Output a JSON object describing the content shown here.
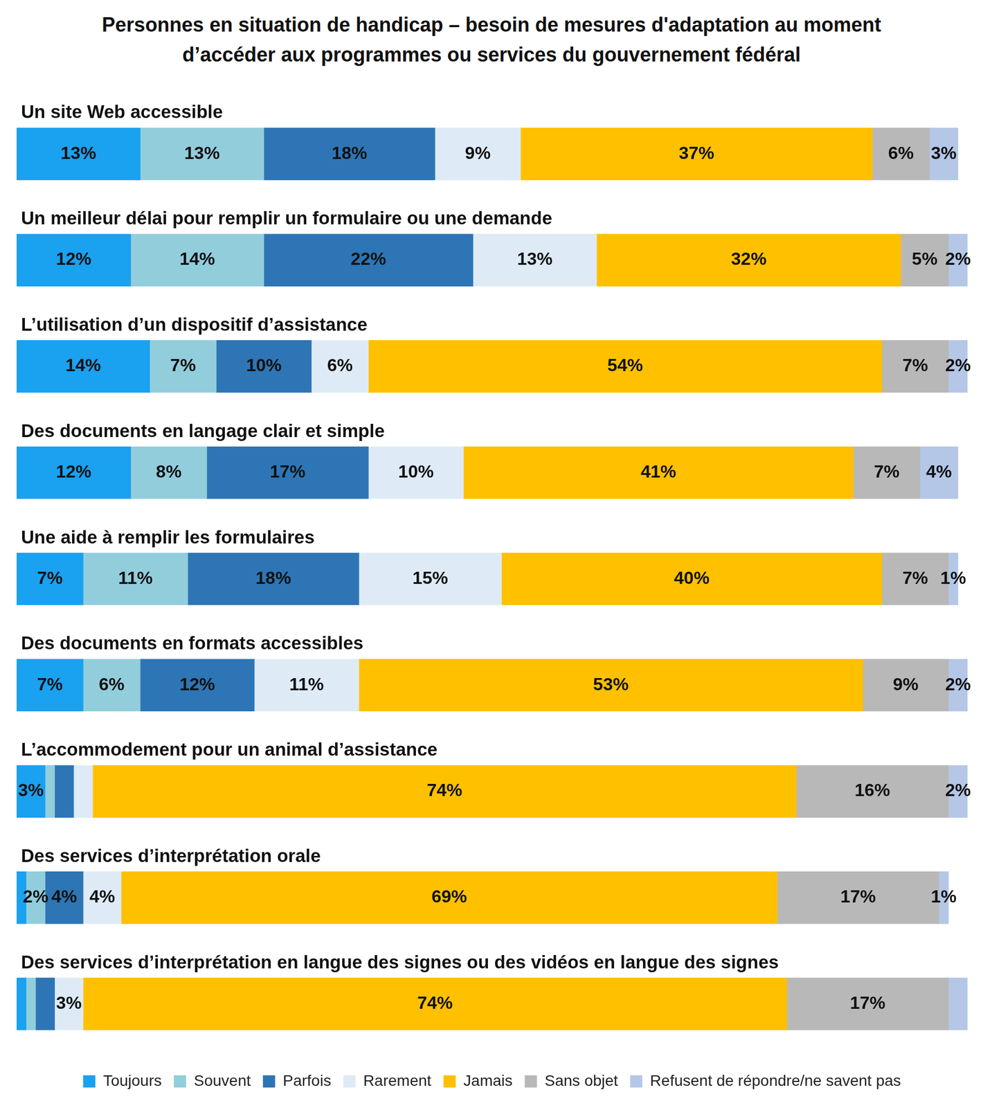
{
  "chart_data": {
    "type": "bar",
    "orientation": "horizontal",
    "stacked": true,
    "title": "Personnes en situation de handicap – besoin de mesures d'adaptation au moment d’accéder aux programmes ou services du gouvernement fédéral",
    "categories": [
      "Un site Web accessible",
      "Un meilleur délai pour remplir un formulaire ou une demande",
      "L’utilisation d’un dispositif d’assistance",
      "Des documents en langage clair et simple",
      "Une aide à remplir les formulaires",
      "Des documents en formats accessibles",
      "L’accommodement pour un animal d’assistance",
      "Des services d’interprétation orale",
      "Des services d’interprétation en langue des signes ou des vidéos en langue des signes"
    ],
    "series": [
      {
        "name": "Toujours",
        "color": "#1aa1f0",
        "values": [
          13,
          12,
          14,
          12,
          7,
          7,
          3,
          1,
          1
        ],
        "value_labels": [
          "13%",
          "12%",
          "14%",
          "12%",
          "7%",
          "7%",
          "3%",
          null,
          null
        ]
      },
      {
        "name": "Souvent",
        "color": "#92cddc",
        "values": [
          13,
          14,
          7,
          8,
          11,
          6,
          1,
          2,
          1
        ],
        "value_labels": [
          "13%",
          "14%",
          "7%",
          "8%",
          "11%",
          "6%",
          null,
          "2%",
          null
        ]
      },
      {
        "name": "Parfois",
        "color": "#2e75b6",
        "values": [
          18,
          22,
          10,
          17,
          18,
          12,
          2,
          4,
          2
        ],
        "value_labels": [
          "18%",
          "22%",
          "10%",
          "17%",
          "18%",
          "12%",
          null,
          "4%",
          null
        ]
      },
      {
        "name": "Rarement",
        "color": "#deebf7",
        "values": [
          9,
          13,
          6,
          10,
          15,
          11,
          2,
          4,
          3
        ],
        "value_labels": [
          "9%",
          "13%",
          "6%",
          "10%",
          "15%",
          "11%",
          null,
          "4%",
          "3%"
        ]
      },
      {
        "name": "Jamais",
        "color": "#ffc000",
        "values": [
          37,
          32,
          54,
          41,
          40,
          53,
          74,
          69,
          74
        ],
        "value_labels": [
          "37%",
          "32%",
          "54%",
          "41%",
          "40%",
          "53%",
          "74%",
          "69%",
          "74%"
        ]
      },
      {
        "name": "Sans objet",
        "color": "#b8b8b8",
        "values": [
          6,
          5,
          7,
          7,
          7,
          9,
          16,
          17,
          17
        ],
        "value_labels": [
          "6%",
          "5%",
          "7%",
          "7%",
          "7%",
          "9%",
          "16%",
          "17%",
          "17%"
        ]
      },
      {
        "name": "Refusent de répondre/ne savent pas",
        "color": "#b4c7e7",
        "values": [
          3,
          2,
          2,
          4,
          1,
          2,
          2,
          1,
          2
        ],
        "value_labels": [
          "3%",
          "2%",
          "2%",
          "4%",
          "1%",
          "2%",
          "2%",
          "1%",
          null
        ]
      }
    ],
    "xlim": [
      0,
      100
    ],
    "xticks": [
      0,
      100
    ],
    "grid": false,
    "legend": "bottom",
    "data_labels": true,
    "tick_labels": false
  }
}
